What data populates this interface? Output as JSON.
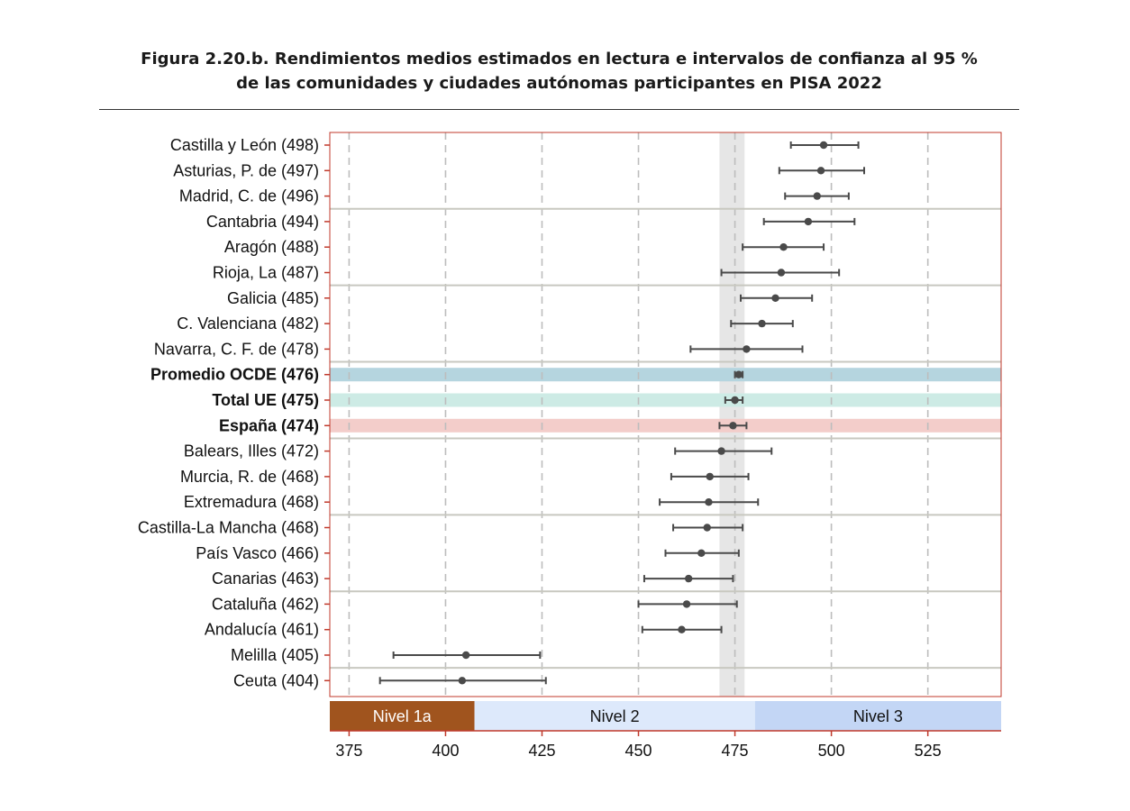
{
  "title": {
    "line1": "Figura 2.20.b. Rendimientos medios estimados en lectura e intervalos de confianza al 95 %",
    "line2": "de las comunidades y ciudades autónomas participantes en PISA 2022"
  },
  "chart_data": {
    "type": "scatter",
    "subtype": "dot-with-confidence-intervals",
    "orientation": "horizontal",
    "xlim": [
      370,
      544
    ],
    "xticks": [
      375,
      400,
      425,
      450,
      475,
      500,
      525
    ],
    "grid": "vertical dashed",
    "reference_band": {
      "low": 471,
      "high": 477.5,
      "color": "#e6e6e6"
    },
    "rows": [
      {
        "label": "Castilla y León (498)",
        "value": 498,
        "low": 489.5,
        "high": 507,
        "bold": false,
        "highlight": null,
        "separator_after": false
      },
      {
        "label": "Asturias, P. de (497)",
        "value": 497.3,
        "low": 486.5,
        "high": 508.5,
        "bold": false,
        "highlight": null,
        "separator_after": false
      },
      {
        "label": "Madrid, C. de (496)",
        "value": 496.3,
        "low": 488,
        "high": 504.5,
        "bold": false,
        "highlight": null,
        "separator_after": true
      },
      {
        "label": "Cantabria (494)",
        "value": 494,
        "low": 482.5,
        "high": 506,
        "bold": false,
        "highlight": null,
        "separator_after": false
      },
      {
        "label": "Aragón (488)",
        "value": 487.6,
        "low": 477,
        "high": 498,
        "bold": false,
        "highlight": null,
        "separator_after": false
      },
      {
        "label": "Rioja, La (487)",
        "value": 487,
        "low": 471.5,
        "high": 502,
        "bold": false,
        "highlight": null,
        "separator_after": true
      },
      {
        "label": "Galicia (485)",
        "value": 485.5,
        "low": 476.5,
        "high": 495,
        "bold": false,
        "highlight": null,
        "separator_after": false
      },
      {
        "label": "C. Valenciana (482)",
        "value": 482,
        "low": 474,
        "high": 490,
        "bold": false,
        "highlight": null,
        "separator_after": false
      },
      {
        "label": "Navarra, C. F. de (478)",
        "value": 478,
        "low": 463.5,
        "high": 492.5,
        "bold": false,
        "highlight": null,
        "separator_after": true
      },
      {
        "label": "Promedio OCDE (476)",
        "value": 476,
        "low": 475,
        "high": 477,
        "bold": true,
        "highlight": "#b5d5df",
        "separator_after": false
      },
      {
        "label": "Total UE (475)",
        "value": 475,
        "low": 472.5,
        "high": 477,
        "bold": true,
        "highlight": "#cdebe5",
        "separator_after": false
      },
      {
        "label": "España (474)",
        "value": 474.5,
        "low": 471,
        "high": 478,
        "bold": true,
        "highlight": "#f3cdca",
        "separator_after": true
      },
      {
        "label": "Balears, Illes (472)",
        "value": 471.5,
        "low": 459.5,
        "high": 484.5,
        "bold": false,
        "highlight": null,
        "separator_after": false
      },
      {
        "label": "Murcia, R. de (468)",
        "value": 468.5,
        "low": 458.5,
        "high": 478.5,
        "bold": false,
        "highlight": null,
        "separator_after": false
      },
      {
        "label": "Extremadura (468)",
        "value": 468.2,
        "low": 455.5,
        "high": 481,
        "bold": false,
        "highlight": null,
        "separator_after": true
      },
      {
        "label": "Castilla-La Mancha (468)",
        "value": 467.8,
        "low": 459,
        "high": 477,
        "bold": false,
        "highlight": null,
        "separator_after": false
      },
      {
        "label": "País Vasco (466)",
        "value": 466.3,
        "low": 457,
        "high": 476,
        "bold": false,
        "highlight": null,
        "separator_after": false
      },
      {
        "label": "Canarias (463)",
        "value": 463,
        "low": 451.5,
        "high": 474.5,
        "bold": false,
        "highlight": null,
        "separator_after": true
      },
      {
        "label": "Cataluña (462)",
        "value": 462.5,
        "low": 450,
        "high": 475.5,
        "bold": false,
        "highlight": null,
        "separator_after": false
      },
      {
        "label": "Andalucía (461)",
        "value": 461.2,
        "low": 451,
        "high": 471.5,
        "bold": false,
        "highlight": null,
        "separator_after": false
      },
      {
        "label": "Melilla (405)",
        "value": 405.3,
        "low": 386.5,
        "high": 424.5,
        "bold": false,
        "highlight": null,
        "separator_after": true
      },
      {
        "label": "Ceuta (404)",
        "value": 404.3,
        "low": 383,
        "high": 426,
        "bold": false,
        "highlight": null,
        "separator_after": false
      }
    ],
    "level_bands": [
      {
        "label": "Nivel 1a",
        "from": 370,
        "to": 407.5,
        "color": "#a0541e",
        "text_color": "#ffffff"
      },
      {
        "label": "Nivel 2",
        "from": 407.5,
        "to": 480.2,
        "color": "#dde9fb",
        "text_color": "#111111"
      },
      {
        "label": "Nivel 3",
        "from": 480.2,
        "to": 544,
        "color": "#c3d6f5",
        "text_color": "#111111"
      }
    ],
    "colors": {
      "frame": "#c0392b",
      "grid": "#bdbdbd",
      "separator": "#c8c8c0",
      "point": "#4a4a4a"
    }
  }
}
